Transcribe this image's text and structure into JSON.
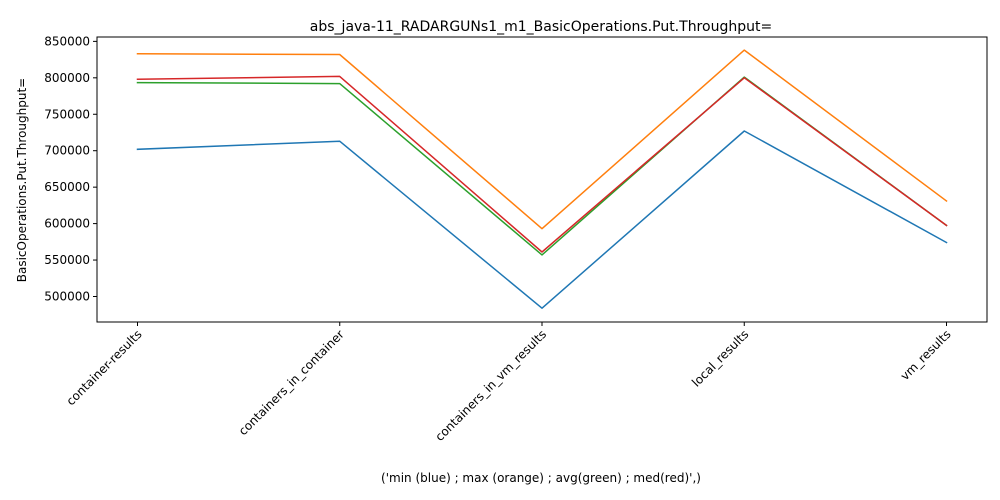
{
  "chart_data": {
    "type": "line",
    "title": "abs_java-11_RADARGUNs1_m1_BasicOperations.Put.Throughput=",
    "xlabel": "('min (blue) ; max (orange) ; avg(green) ; med(red)',)",
    "ylabel": "BasicOperations.Put.Throughput=",
    "categories": [
      "container-results",
      "containers_in_container",
      "containers_in_vm_results",
      "local_results",
      "vm_results"
    ],
    "ylim": [
      465000,
      856000
    ],
    "yticks": [
      500000,
      550000,
      600000,
      650000,
      700000,
      750000,
      800000,
      850000
    ],
    "ytick_labels": [
      "500000",
      "550000",
      "600000",
      "650000",
      "700000",
      "750000",
      "800000",
      "850000"
    ],
    "grid": false,
    "series": [
      {
        "color": "#1f77b4",
        "values": [
          702000,
          713000,
          484000,
          727000,
          574000
        ]
      },
      {
        "color": "#ff7f0e",
        "values": [
          833000,
          832000,
          593000,
          838000,
          631000
        ]
      },
      {
        "color": "#2ca02c",
        "values": [
          793500,
          792000,
          557000,
          801000,
          597500
        ]
      },
      {
        "color": "#d62728",
        "values": [
          798000,
          802000,
          561000,
          800000,
          597500
        ]
      }
    ]
  }
}
